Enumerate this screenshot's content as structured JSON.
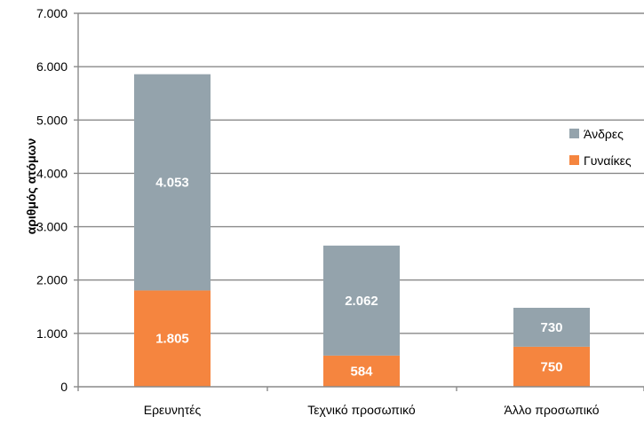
{
  "chart_data": {
    "type": "bar",
    "stacked": true,
    "categories": [
      "Ερευνητές",
      "Τεχνικό προσωπικό",
      "Άλλο προσωπικό"
    ],
    "series": [
      {
        "name": "Γυναίκες",
        "values": [
          1805,
          584,
          750
        ],
        "labels": [
          "1.805",
          "584",
          "750"
        ],
        "color": "#f5853f"
      },
      {
        "name": "Άνδρες",
        "values": [
          4053,
          2062,
          730
        ],
        "labels": [
          "4.053",
          "2.062",
          "730"
        ],
        "color": "#94a3ac"
      }
    ],
    "ylabel": "αριθμός ατόμων",
    "ylim": [
      0,
      7000
    ],
    "yticks": [
      0,
      1000,
      2000,
      3000,
      4000,
      5000,
      6000,
      7000
    ],
    "ytick_labels": [
      "0",
      "1.000",
      "2.000",
      "3.000",
      "4.000",
      "5.000",
      "6.000",
      "7.000"
    ],
    "grid": true,
    "legend_position": "right",
    "legend_order": [
      "Άνδρες",
      "Γυναίκες"
    ]
  }
}
